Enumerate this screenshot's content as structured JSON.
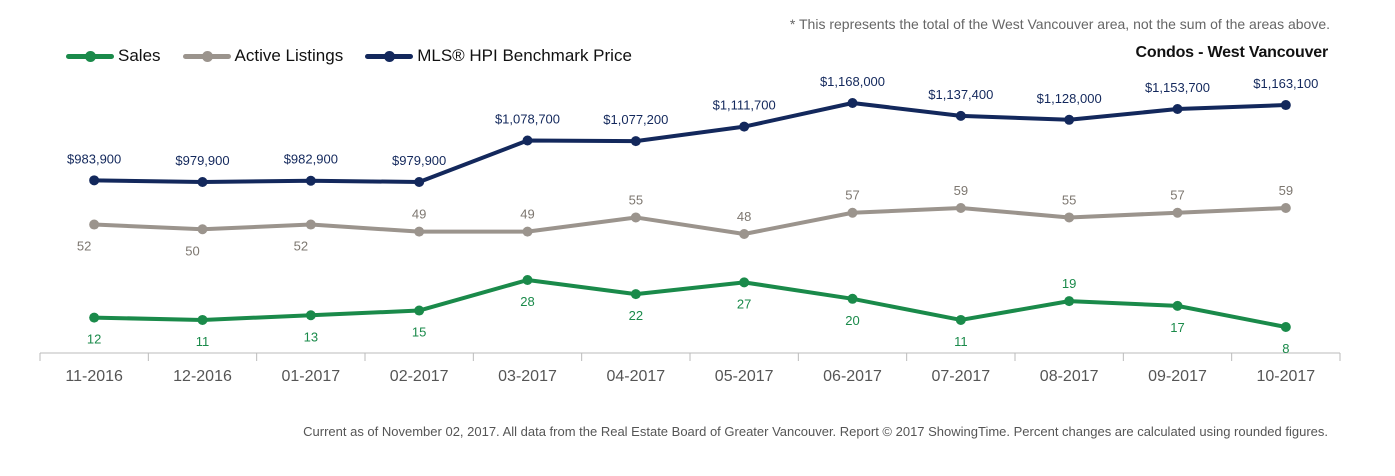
{
  "note": "* This represents the total of the West Vancouver area, not the sum of the areas above.",
  "subtitle": "Condos - West Vancouver",
  "footer": "Current as of November 02, 2017. All data from the Real Estate Board of Greater Vancouver. Report © 2017 ShowingTime. Percent changes are calculated using rounded figures.",
  "legend": [
    {
      "label": "Sales",
      "color": "#1a8a4a"
    },
    {
      "label": "Active Listings",
      "color": "#9b948d"
    },
    {
      "label": "MLS® HPI Benchmark Price",
      "color": "#13285c"
    }
  ],
  "chart_data": {
    "type": "line",
    "title": "",
    "xlabel": "",
    "ylabel": "",
    "grid": false,
    "legend_position": "top-left",
    "categories": [
      "11-2016",
      "12-2016",
      "01-2017",
      "02-2017",
      "03-2017",
      "04-2017",
      "05-2017",
      "06-2017",
      "07-2017",
      "08-2017",
      "09-2017",
      "10-2017"
    ],
    "series": [
      {
        "name": "Sales",
        "color": "#1a8a4a",
        "values": [
          12,
          11,
          13,
          15,
          28,
          22,
          27,
          20,
          11,
          19,
          17,
          8
        ],
        "labels": [
          "12",
          "11",
          "13",
          "15",
          "28",
          "22",
          "27",
          "20",
          "11",
          "19",
          "17",
          "8"
        ]
      },
      {
        "name": "Active Listings",
        "color": "#9b948d",
        "values": [
          52,
          50,
          52,
          49,
          49,
          55,
          48,
          57,
          59,
          55,
          57,
          59
        ],
        "labels": [
          "52",
          "50",
          "52",
          "49",
          "49",
          "55",
          "48",
          "57",
          "59",
          "55",
          "57",
          "59"
        ]
      },
      {
        "name": "MLS® HPI Benchmark Price",
        "color": "#13285c",
        "values": [
          983900,
          979900,
          982900,
          979900,
          1078700,
          1077200,
          1111700,
          1168000,
          1137400,
          1128000,
          1153700,
          1163100
        ],
        "labels": [
          "$983,900",
          "$979,900",
          "$982,900",
          "$979,900",
          "$1,078,700",
          "$1,077,200",
          "$1,111,700",
          "$1,168,000",
          "$1,137,400",
          "$1,128,000",
          "$1,153,700",
          "$1,163,100"
        ]
      }
    ]
  }
}
